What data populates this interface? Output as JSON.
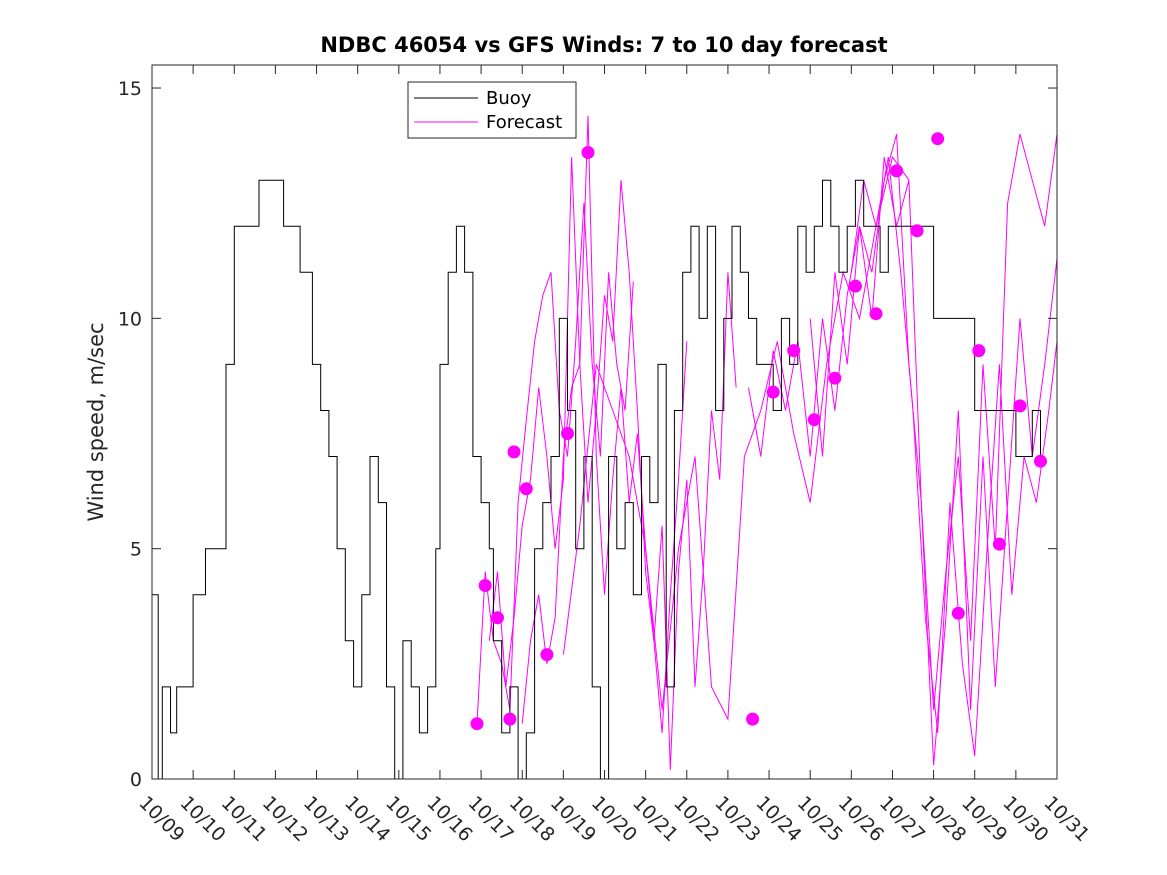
{
  "chart_data": {
    "type": "line",
    "title": "NDBC 46054 vs GFS Winds: 7 to 10 day forecast",
    "xlabel": "",
    "ylabel": "Wind speed, m/sec",
    "xlim": [
      0,
      22
    ],
    "ylim": [
      0,
      15.5
    ],
    "yticks": [
      0,
      5,
      10,
      15
    ],
    "categories": [
      "10/09",
      "10/10",
      "10/11",
      "10/12",
      "10/13",
      "10/14",
      "10/15",
      "10/16",
      "10/17",
      "10/18",
      "10/19",
      "10/20",
      "10/21",
      "10/22",
      "10/23",
      "10/24",
      "10/25",
      "10/26",
      "10/27",
      "10/28",
      "10/29",
      "10/30",
      "10/31"
    ],
    "legend": {
      "position": "top-center",
      "entries": [
        "Buoy",
        "Forecast"
      ]
    },
    "colors": {
      "buoy": "#000000",
      "forecast": "#ff00ff",
      "axis": "#262626"
    },
    "buoy": {
      "name": "Buoy",
      "x": [
        0,
        0.15,
        0.25,
        0.45,
        0.6,
        0.8,
        1.0,
        1.3,
        1.6,
        1.8,
        2.0,
        2.3,
        2.6,
        2.8,
        3.0,
        3.2,
        3.4,
        3.6,
        3.9,
        4.1,
        4.3,
        4.5,
        4.7,
        4.9,
        5.1,
        5.3,
        5.5,
        5.7,
        5.9,
        6.1,
        6.3,
        6.5,
        6.7,
        6.9,
        7.0,
        7.2,
        7.4,
        7.6,
        7.8,
        8.0,
        8.2,
        8.3,
        8.5,
        8.7,
        8.9,
        9.1,
        9.3,
        9.5,
        9.7,
        9.9,
        10.1,
        10.3,
        10.5,
        10.7,
        10.9,
        11.1,
        11.3,
        11.5,
        11.7,
        11.9,
        12.1,
        12.3,
        12.5,
        12.7,
        12.9,
        13.1,
        13.3,
        13.5,
        13.7,
        13.9,
        14.1,
        14.3,
        14.5,
        14.7,
        14.9,
        15.1,
        15.3,
        15.5,
        15.7,
        15.9,
        16.1,
        16.3,
        16.5,
        16.7,
        16.9,
        17.1,
        17.3,
        17.5,
        17.7,
        17.9,
        18.1,
        19.0,
        20.0,
        21.0,
        21.4,
        21.6
      ],
      "values": [
        4,
        0,
        2,
        1,
        2,
        2,
        4,
        5,
        5,
        9,
        12,
        12,
        13,
        13,
        13,
        12,
        12,
        11,
        9,
        8,
        7,
        5,
        3,
        2,
        4,
        7,
        6,
        2,
        0,
        3,
        2,
        1,
        2,
        5,
        9,
        11,
        12,
        11,
        7,
        6,
        5,
        3,
        1,
        2,
        0,
        1,
        5,
        6,
        7,
        10,
        8,
        5,
        7,
        2,
        0,
        7,
        5,
        6,
        4,
        7,
        6,
        9,
        2,
        8,
        11,
        12,
        10,
        12,
        8,
        10,
        12,
        11,
        10,
        9,
        9,
        8,
        10,
        9,
        12,
        11,
        12,
        13,
        12,
        11,
        12,
        13,
        12,
        12,
        11,
        12,
        12,
        10,
        8,
        7,
        8,
        7
      ]
    },
    "forecast_lines": [
      {
        "x": [
          7.9,
          8.1,
          8.3,
          8.5,
          8.7,
          8.9,
          9.1,
          9.3,
          9.5,
          9.7,
          9.9,
          10.1,
          10.3,
          10.5,
          10.7,
          10.9,
          11.1,
          11.3,
          11.5,
          11.7
        ],
        "values": [
          1.2,
          4.5,
          3.0,
          2.5,
          1.5,
          6.0,
          7.8,
          9.5,
          10.5,
          11.0,
          8.0,
          7.0,
          9.5,
          12.5,
          9.0,
          7.0,
          11.0,
          9.0,
          8.0,
          10.8
        ]
      },
      {
        "x": [
          8.2,
          8.4,
          8.6,
          8.8,
          9.0,
          9.2,
          9.4,
          9.6,
          9.8,
          10.0,
          10.2,
          10.4,
          10.6,
          10.8,
          11.0,
          11.2,
          11.4,
          11.6,
          11.8,
          12.0,
          12.2,
          12.4,
          12.6,
          12.8,
          13.0
        ],
        "values": [
          3.0,
          4.5,
          2.0,
          3.5,
          5.5,
          6.5,
          8.5,
          7.0,
          5.0,
          6.5,
          13.5,
          9.0,
          6.0,
          8.0,
          10.5,
          9.5,
          13.0,
          11.0,
          8.0,
          4.5,
          3.0,
          1.0,
          4.0,
          6.5,
          9.5
        ]
      },
      {
        "x": [
          9.0,
          9.2,
          9.4,
          9.6,
          9.8,
          10.0,
          10.2,
          10.4,
          10.6,
          10.8,
          11.0,
          11.2,
          11.4,
          11.6,
          11.8,
          12.0,
          12.2,
          12.4,
          12.6,
          12.8,
          13.0,
          13.2,
          13.4,
          13.6,
          13.8,
          14.0,
          14.2
        ],
        "values": [
          1.2,
          3.0,
          4.0,
          2.5,
          3.5,
          7.0,
          8.5,
          9.0,
          14.4,
          7.0,
          4.0,
          6.5,
          8.5,
          6.0,
          7.5,
          5.0,
          3.0,
          5.5,
          0.2,
          4.5,
          6.5,
          2.0,
          4.5,
          8.0,
          6.5,
          11.0,
          8.5
        ]
      },
      {
        "x": [
          10.0,
          10.4,
          10.8,
          11.2,
          11.6,
          12.0,
          12.4,
          12.8,
          13.2,
          13.6,
          14.0,
          14.4,
          14.8,
          15.2,
          15.6,
          16.0,
          16.4,
          16.8,
          17.2,
          17.6,
          18.0,
          18.4
        ],
        "values": [
          2.7,
          5.5,
          9.0,
          8.0,
          7.0,
          5.0,
          1.5,
          5.0,
          7.0,
          2.0,
          1.3,
          7.0,
          8.0,
          9.5,
          7.5,
          6.0,
          9.0,
          11.0,
          10.0,
          12.0,
          13.5,
          13.0
        ]
      },
      {
        "x": [
          14.5,
          14.8,
          15.1,
          15.4,
          15.7,
          16.0,
          16.3,
          16.6,
          16.9,
          17.2,
          17.5,
          17.8,
          18.1,
          18.4,
          18.7,
          19.0,
          19.3,
          19.6,
          19.9,
          20.2,
          20.5,
          20.8,
          21.1,
          21.4,
          21.7,
          22.0
        ],
        "values": [
          8.5,
          7.0,
          9.3,
          8.0,
          9.5,
          7.0,
          10.0,
          8.0,
          10.5,
          12.0,
          11.0,
          13.0,
          14.0,
          9.0,
          6.0,
          1.5,
          4.5,
          7.0,
          3.0,
          9.0,
          5.0,
          12.5,
          14.0,
          13.0,
          12.0,
          14.0
        ]
      },
      {
        "x": [
          16.0,
          16.3,
          16.6,
          16.9,
          17.2,
          17.5,
          17.8,
          18.1,
          18.4,
          18.7,
          19.0,
          19.3,
          19.6,
          19.9,
          20.2,
          20.5,
          20.8,
          21.1,
          21.4,
          21.7,
          22.0
        ],
        "values": [
          10.0,
          7.0,
          11.0,
          9.0,
          12.0,
          10.0,
          13.5,
          12.0,
          13.0,
          6.0,
          0.3,
          3.5,
          8.0,
          1.5,
          7.0,
          2.0,
          6.0,
          10.0,
          7.0,
          9.0,
          11.3
        ]
      },
      {
        "x": [
          17.0,
          17.3,
          17.6,
          17.9,
          18.2,
          18.5,
          18.8,
          19.1,
          19.4,
          19.7,
          20.0,
          20.3,
          20.6,
          20.9,
          21.2,
          21.5,
          21.8,
          22.0
        ],
        "values": [
          11.0,
          13.0,
          12.0,
          13.5,
          11.0,
          8.0,
          3.5,
          1.0,
          6.0,
          2.5,
          0.5,
          5.0,
          9.0,
          4.0,
          7.0,
          6.0,
          8.0,
          9.5
        ]
      }
    ],
    "forecast_dots": {
      "x": [
        7.9,
        8.1,
        8.4,
        8.7,
        8.8,
        9.1,
        9.6,
        10.1,
        10.6,
        14.6,
        15.1,
        15.6,
        16.1,
        16.6,
        17.1,
        17.6,
        18.1,
        18.6,
        19.1,
        19.6,
        20.1,
        20.6,
        21.1,
        21.6
      ],
      "values": [
        1.2,
        4.2,
        3.5,
        1.3,
        7.1,
        6.3,
        2.7,
        7.5,
        13.6,
        1.3,
        8.4,
        9.3,
        7.8,
        8.7,
        10.7,
        10.1,
        13.2,
        11.9,
        13.9,
        3.6,
        9.3,
        5.1,
        8.1,
        6.9
      ]
    }
  }
}
